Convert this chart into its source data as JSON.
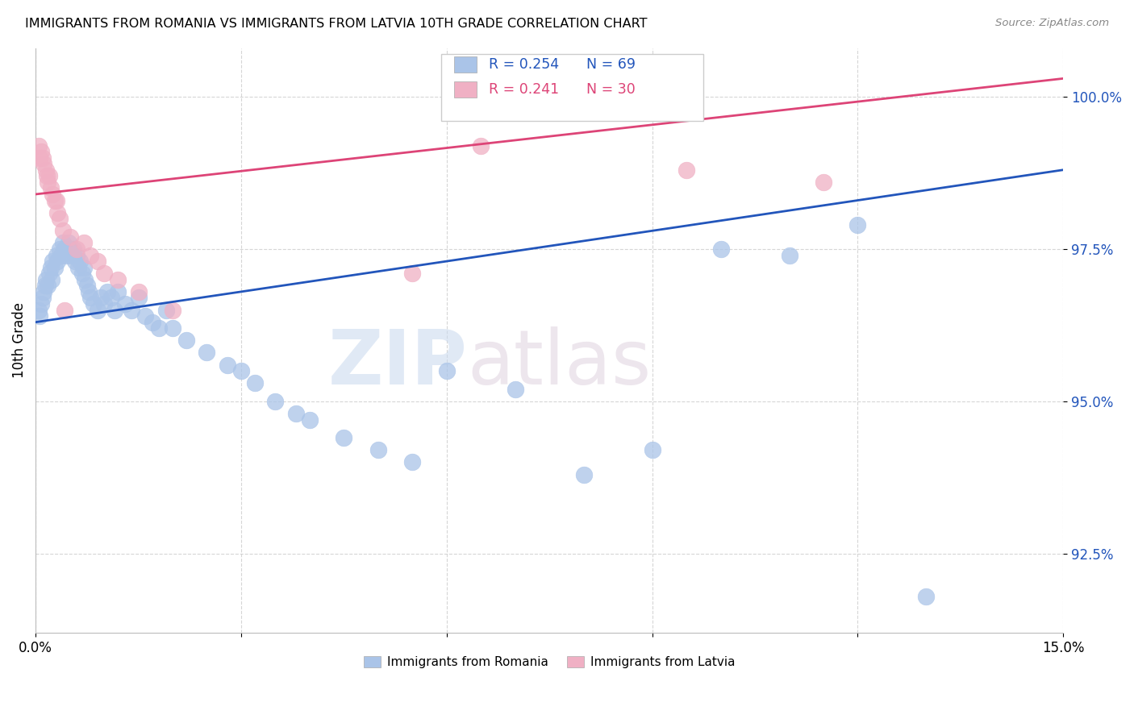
{
  "title": "IMMIGRANTS FROM ROMANIA VS IMMIGRANTS FROM LATVIA 10TH GRADE CORRELATION CHART",
  "source": "Source: ZipAtlas.com",
  "ylabel": "10th Grade",
  "xmin": 0.0,
  "xmax": 15.0,
  "ymin": 91.2,
  "ymax": 100.8,
  "yticks": [
    92.5,
    95.0,
    97.5,
    100.0
  ],
  "ytick_labels": [
    "92.5%",
    "95.0%",
    "97.5%",
    "100.0%"
  ],
  "legend_r_romania": "R = 0.254",
  "legend_n_romania": "N = 69",
  "legend_r_latvia": "R = 0.241",
  "legend_n_latvia": "N = 30",
  "romania_color": "#aac4e8",
  "latvia_color": "#f0b0c4",
  "romania_line_color": "#2255bb",
  "latvia_line_color": "#dd4477",
  "watermark_zip": "ZIP",
  "watermark_atlas": "atlas",
  "romania_line_x": [
    0.0,
    15.0
  ],
  "romania_line_y": [
    96.3,
    98.8
  ],
  "latvia_line_x": [
    0.0,
    15.0
  ],
  "latvia_line_y": [
    98.4,
    100.3
  ],
  "romania_x": [
    0.05,
    0.08,
    0.1,
    0.12,
    0.15,
    0.18,
    0.2,
    0.22,
    0.25,
    0.28,
    0.3,
    0.32,
    0.35,
    0.38,
    0.4,
    0.42,
    0.45,
    0.48,
    0.5,
    0.52,
    0.55,
    0.58,
    0.6,
    0.62,
    0.65,
    0.68,
    0.7,
    0.72,
    0.75,
    0.78,
    0.8,
    0.85,
    0.9,
    0.95,
    1.0,
    1.05,
    1.1,
    1.15,
    1.2,
    1.3,
    1.4,
    1.5,
    1.6,
    1.7,
    1.8,
    1.9,
    2.0,
    2.2,
    2.5,
    2.8,
    3.0,
    3.2,
    3.5,
    3.8,
    4.0,
    4.5,
    5.0,
    5.5,
    6.0,
    7.0,
    8.0,
    9.0,
    10.0,
    11.0,
    12.0,
    13.0,
    0.06,
    0.14,
    0.24
  ],
  "romania_y": [
    96.5,
    96.6,
    96.7,
    96.8,
    97.0,
    96.9,
    97.1,
    97.2,
    97.3,
    97.2,
    97.4,
    97.3,
    97.5,
    97.4,
    97.6,
    97.5,
    97.4,
    97.6,
    97.5,
    97.4,
    97.5,
    97.3,
    97.4,
    97.2,
    97.3,
    97.1,
    97.2,
    97.0,
    96.9,
    96.8,
    96.7,
    96.6,
    96.5,
    96.7,
    96.6,
    96.8,
    96.7,
    96.5,
    96.8,
    96.6,
    96.5,
    96.7,
    96.4,
    96.3,
    96.2,
    96.5,
    96.2,
    96.0,
    95.8,
    95.6,
    95.5,
    95.3,
    95.0,
    94.8,
    94.7,
    94.4,
    94.2,
    94.0,
    95.5,
    95.2,
    93.8,
    94.2,
    97.5,
    97.4,
    97.9,
    91.8,
    96.4,
    96.9,
    97.0
  ],
  "latvia_x": [
    0.05,
    0.08,
    0.1,
    0.12,
    0.15,
    0.18,
    0.2,
    0.22,
    0.25,
    0.28,
    0.3,
    0.32,
    0.35,
    0.4,
    0.5,
    0.6,
    0.7,
    0.8,
    0.9,
    1.0,
    1.2,
    1.5,
    2.0,
    5.5,
    6.5,
    9.5,
    11.5,
    0.06,
    0.16,
    0.42
  ],
  "latvia_y": [
    99.2,
    99.1,
    99.0,
    98.9,
    98.8,
    98.6,
    98.7,
    98.5,
    98.4,
    98.3,
    98.3,
    98.1,
    98.0,
    97.8,
    97.7,
    97.5,
    97.6,
    97.4,
    97.3,
    97.1,
    97.0,
    96.8,
    96.5,
    97.1,
    99.2,
    98.8,
    98.6,
    99.0,
    98.7,
    96.5
  ]
}
